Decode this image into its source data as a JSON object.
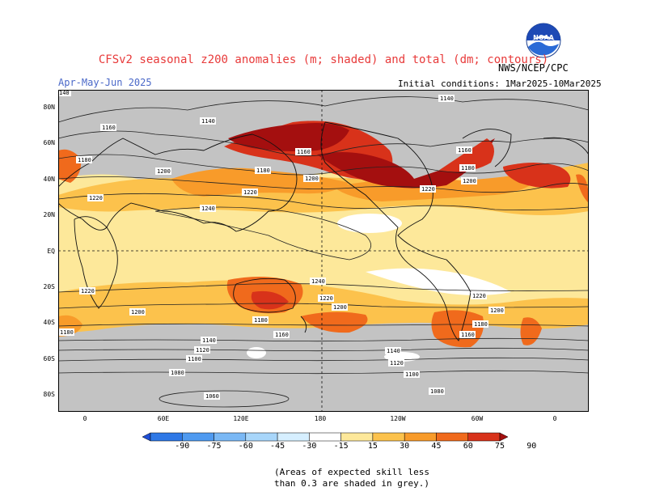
{
  "header": {
    "title": "CFSv2 seasonal z200 anomalies (m; shaded) and total (dm; contours)",
    "agency": "NWS/NCEP/CPC",
    "season": "Apr-May-Jun 2025",
    "initial_conditions": "Initial conditions: 1Mar2025-10Mar2025"
  },
  "logo": {
    "name": "noaa-logo",
    "text": "NOAA"
  },
  "map": {
    "lat_labels": [
      "80N",
      "60N",
      "40N",
      "20N",
      "EQ",
      "20S",
      "40S",
      "60S",
      "80S"
    ],
    "lon_labels": [
      "0",
      "60E",
      "120E",
      "180",
      "120W",
      "60W",
      "0"
    ],
    "contour_labels": [
      "1140",
      "1160",
      "1180",
      "1200",
      "1220",
      "1240",
      "1120",
      "1100",
      "1080",
      "1060"
    ],
    "grey_color": "#c3c3c3"
  },
  "colorbar": {
    "labels": [
      "-90",
      "-75",
      "-60",
      "-45",
      "-30",
      "-15",
      "15",
      "30",
      "45",
      "60",
      "75",
      "90"
    ],
    "colors": [
      "#1f4fd6",
      "#2e78e6",
      "#4f9af0",
      "#7ab8f5",
      "#a8d6fa",
      "#d6efff",
      "#ffffff",
      "#fde89a",
      "#fcc24c",
      "#f89b2a",
      "#f06a1c",
      "#d8321a",
      "#a40f0f"
    ]
  },
  "note": {
    "line1": "(Areas of expected skill less",
    "line2": "than 0.3 are shaded in grey.)"
  }
}
